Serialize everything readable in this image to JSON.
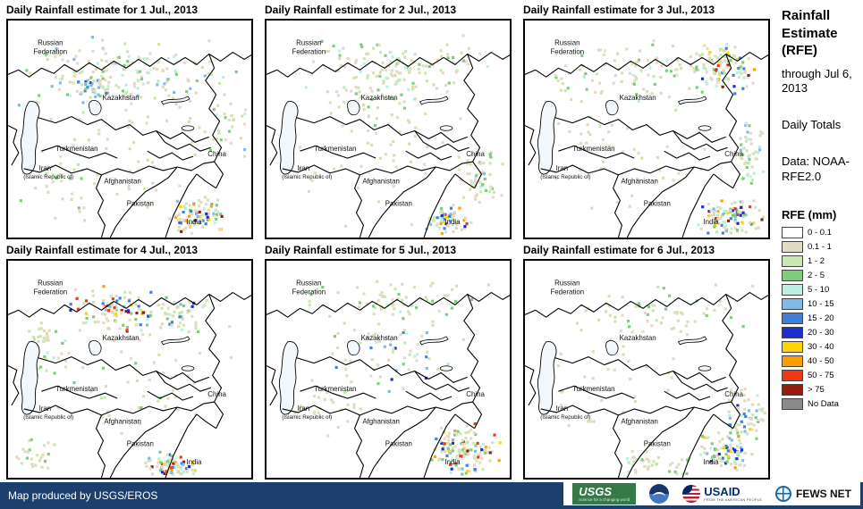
{
  "panels": [
    {
      "title": "Daily Rainfall estimate for 1 Jul., 2013"
    },
    {
      "title": "Daily Rainfall estimate for 2 Jul., 2013"
    },
    {
      "title": "Daily Rainfall estimate for 3 Jul., 2013"
    },
    {
      "title": "Daily Rainfall estimate for 4 Jul., 2013"
    },
    {
      "title": "Daily Rainfall estimate for 5 Jul., 2013"
    },
    {
      "title": "Daily Rainfall estimate for 6 Jul., 2013"
    }
  ],
  "map_labels": {
    "russia": [
      "Russian",
      "Federation"
    ],
    "kazakhstan": "Kazakhstan",
    "turkmenistan": "Turkmenistan",
    "iran": [
      "Iran",
      "(Islamic Republic of)"
    ],
    "afghanistan": "Afghanistan",
    "pakistan": "Pakistan",
    "india": "India",
    "china": "China"
  },
  "sidebar": {
    "title": "Rainfall Estimate (RFE)",
    "subtitle": "through Jul 6, 2013",
    "period": "Daily Totals",
    "source": "Data: NOAA-RFE2.0",
    "legend_title": "RFE (mm)",
    "legend": [
      {
        "label": "0 - 0.1",
        "color": "#ffffff"
      },
      {
        "label": "0.1 - 1",
        "color": "#e3dbc0"
      },
      {
        "label": "1 - 2",
        "color": "#c9e8b0"
      },
      {
        "label": "2 - 5",
        "color": "#7ecd7b"
      },
      {
        "label": "5 - 10",
        "color": "#bdf0e4"
      },
      {
        "label": "10 - 15",
        "color": "#7fbbe9"
      },
      {
        "label": "15 - 20",
        "color": "#3f80db"
      },
      {
        "label": "20 - 30",
        "color": "#1b2ed0"
      },
      {
        "label": "30 - 40",
        "color": "#ffd400"
      },
      {
        "label": "40 - 50",
        "color": "#ff9e00"
      },
      {
        "label": "50 - 75",
        "color": "#ee3911"
      },
      {
        "label": "> 75",
        "color": "#9a1a0e"
      },
      {
        "label": "No Data",
        "color": "#8a8a8a"
      }
    ]
  },
  "footer": {
    "credit": "Map produced by USGS/EROS",
    "bar_color": "#1c3f6e",
    "logos": [
      {
        "name": "USGS",
        "tagline": "science for a changing world"
      },
      {
        "name": "NOAA"
      },
      {
        "name": "USAID",
        "tagline": "FROM THE AMERICAN PEOPLE"
      },
      {
        "name": "FEWS NET"
      }
    ]
  }
}
